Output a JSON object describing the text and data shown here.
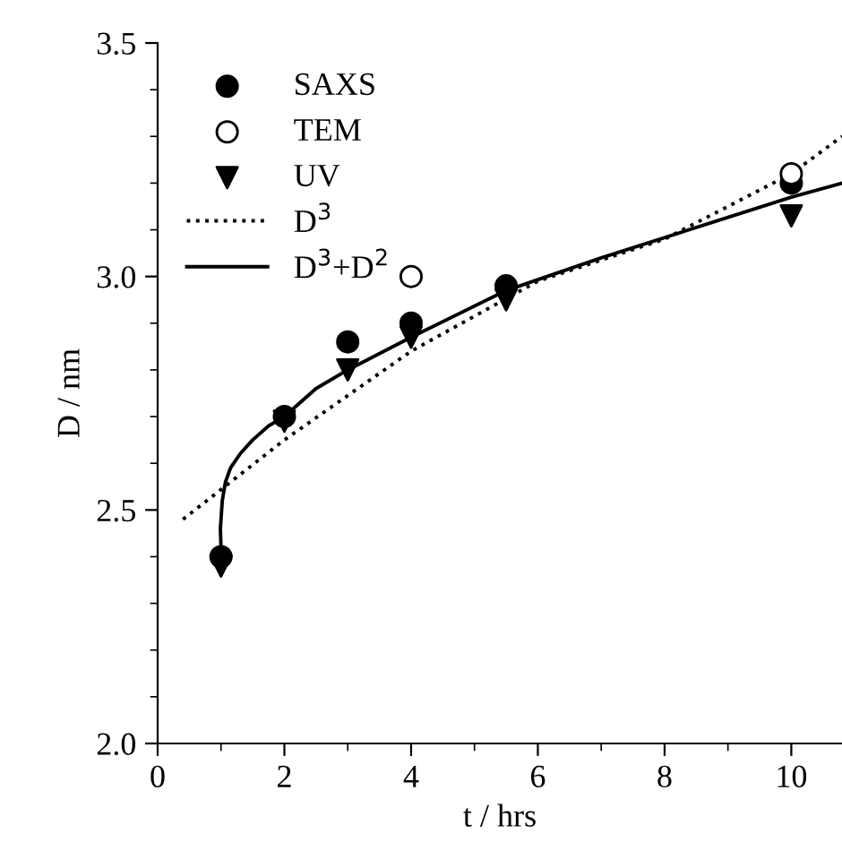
{
  "chart_data": {
    "type": "scatter",
    "xlabel": "t / hrs",
    "ylabel": "D / nm",
    "xlim": [
      0,
      10.8
    ],
    "ylim": [
      2.0,
      3.5
    ],
    "xticks": [
      0,
      2,
      4,
      6,
      8,
      10
    ],
    "yticks": [
      {
        "value": 2.0,
        "label": "2.0"
      },
      {
        "value": 2.5,
        "label": "2.5"
      },
      {
        "value": 3.0,
        "label": "3.0"
      },
      {
        "value": 3.5,
        "label": "3.5"
      }
    ],
    "grid": false,
    "legend": "top left",
    "series": [
      {
        "name": "SAXS",
        "marker": "circle",
        "color": "#000000",
        "x": [
          1,
          2,
          3,
          4,
          5.5,
          10
        ],
        "values": [
          2.4,
          2.7,
          2.86,
          2.9,
          2.98,
          3.2
        ]
      },
      {
        "name": "TEM",
        "marker": "circle_open",
        "color": "#000000",
        "x": [
          4,
          10
        ],
        "values": [
          3.0,
          3.22
        ]
      },
      {
        "name": "UV",
        "marker": "triangle",
        "color": "#000000",
        "x": [
          1,
          2,
          3,
          4,
          5.5,
          10
        ],
        "values": [
          2.38,
          2.69,
          2.8,
          2.87,
          2.95,
          3.13
        ]
      },
      {
        "name": "D$^{3}$",
        "type": "line",
        "line_style": "dotted",
        "color": "#000000",
        "x": [
          0.4,
          2,
          4,
          6,
          8,
          10,
          10.8
        ],
        "values": [
          2.48,
          2.65,
          2.84,
          2.99,
          3.08,
          3.22,
          3.3
        ]
      },
      {
        "name": "D$^{3}$+D$^{2}$",
        "type": "line",
        "line_style": "solid",
        "color": "#000000",
        "x": [
          1,
          0.99,
          1.02,
          1.07,
          1.15,
          1.3,
          1.5,
          1.75,
          2,
          2.5,
          3,
          4,
          5.5,
          7,
          10,
          10.8
        ],
        "values": [
          2.42,
          2.46,
          2.52,
          2.56,
          2.59,
          2.62,
          2.65,
          2.68,
          2.7,
          2.76,
          2.8,
          2.87,
          2.97,
          3.04,
          3.17,
          3.2
        ]
      }
    ]
  }
}
